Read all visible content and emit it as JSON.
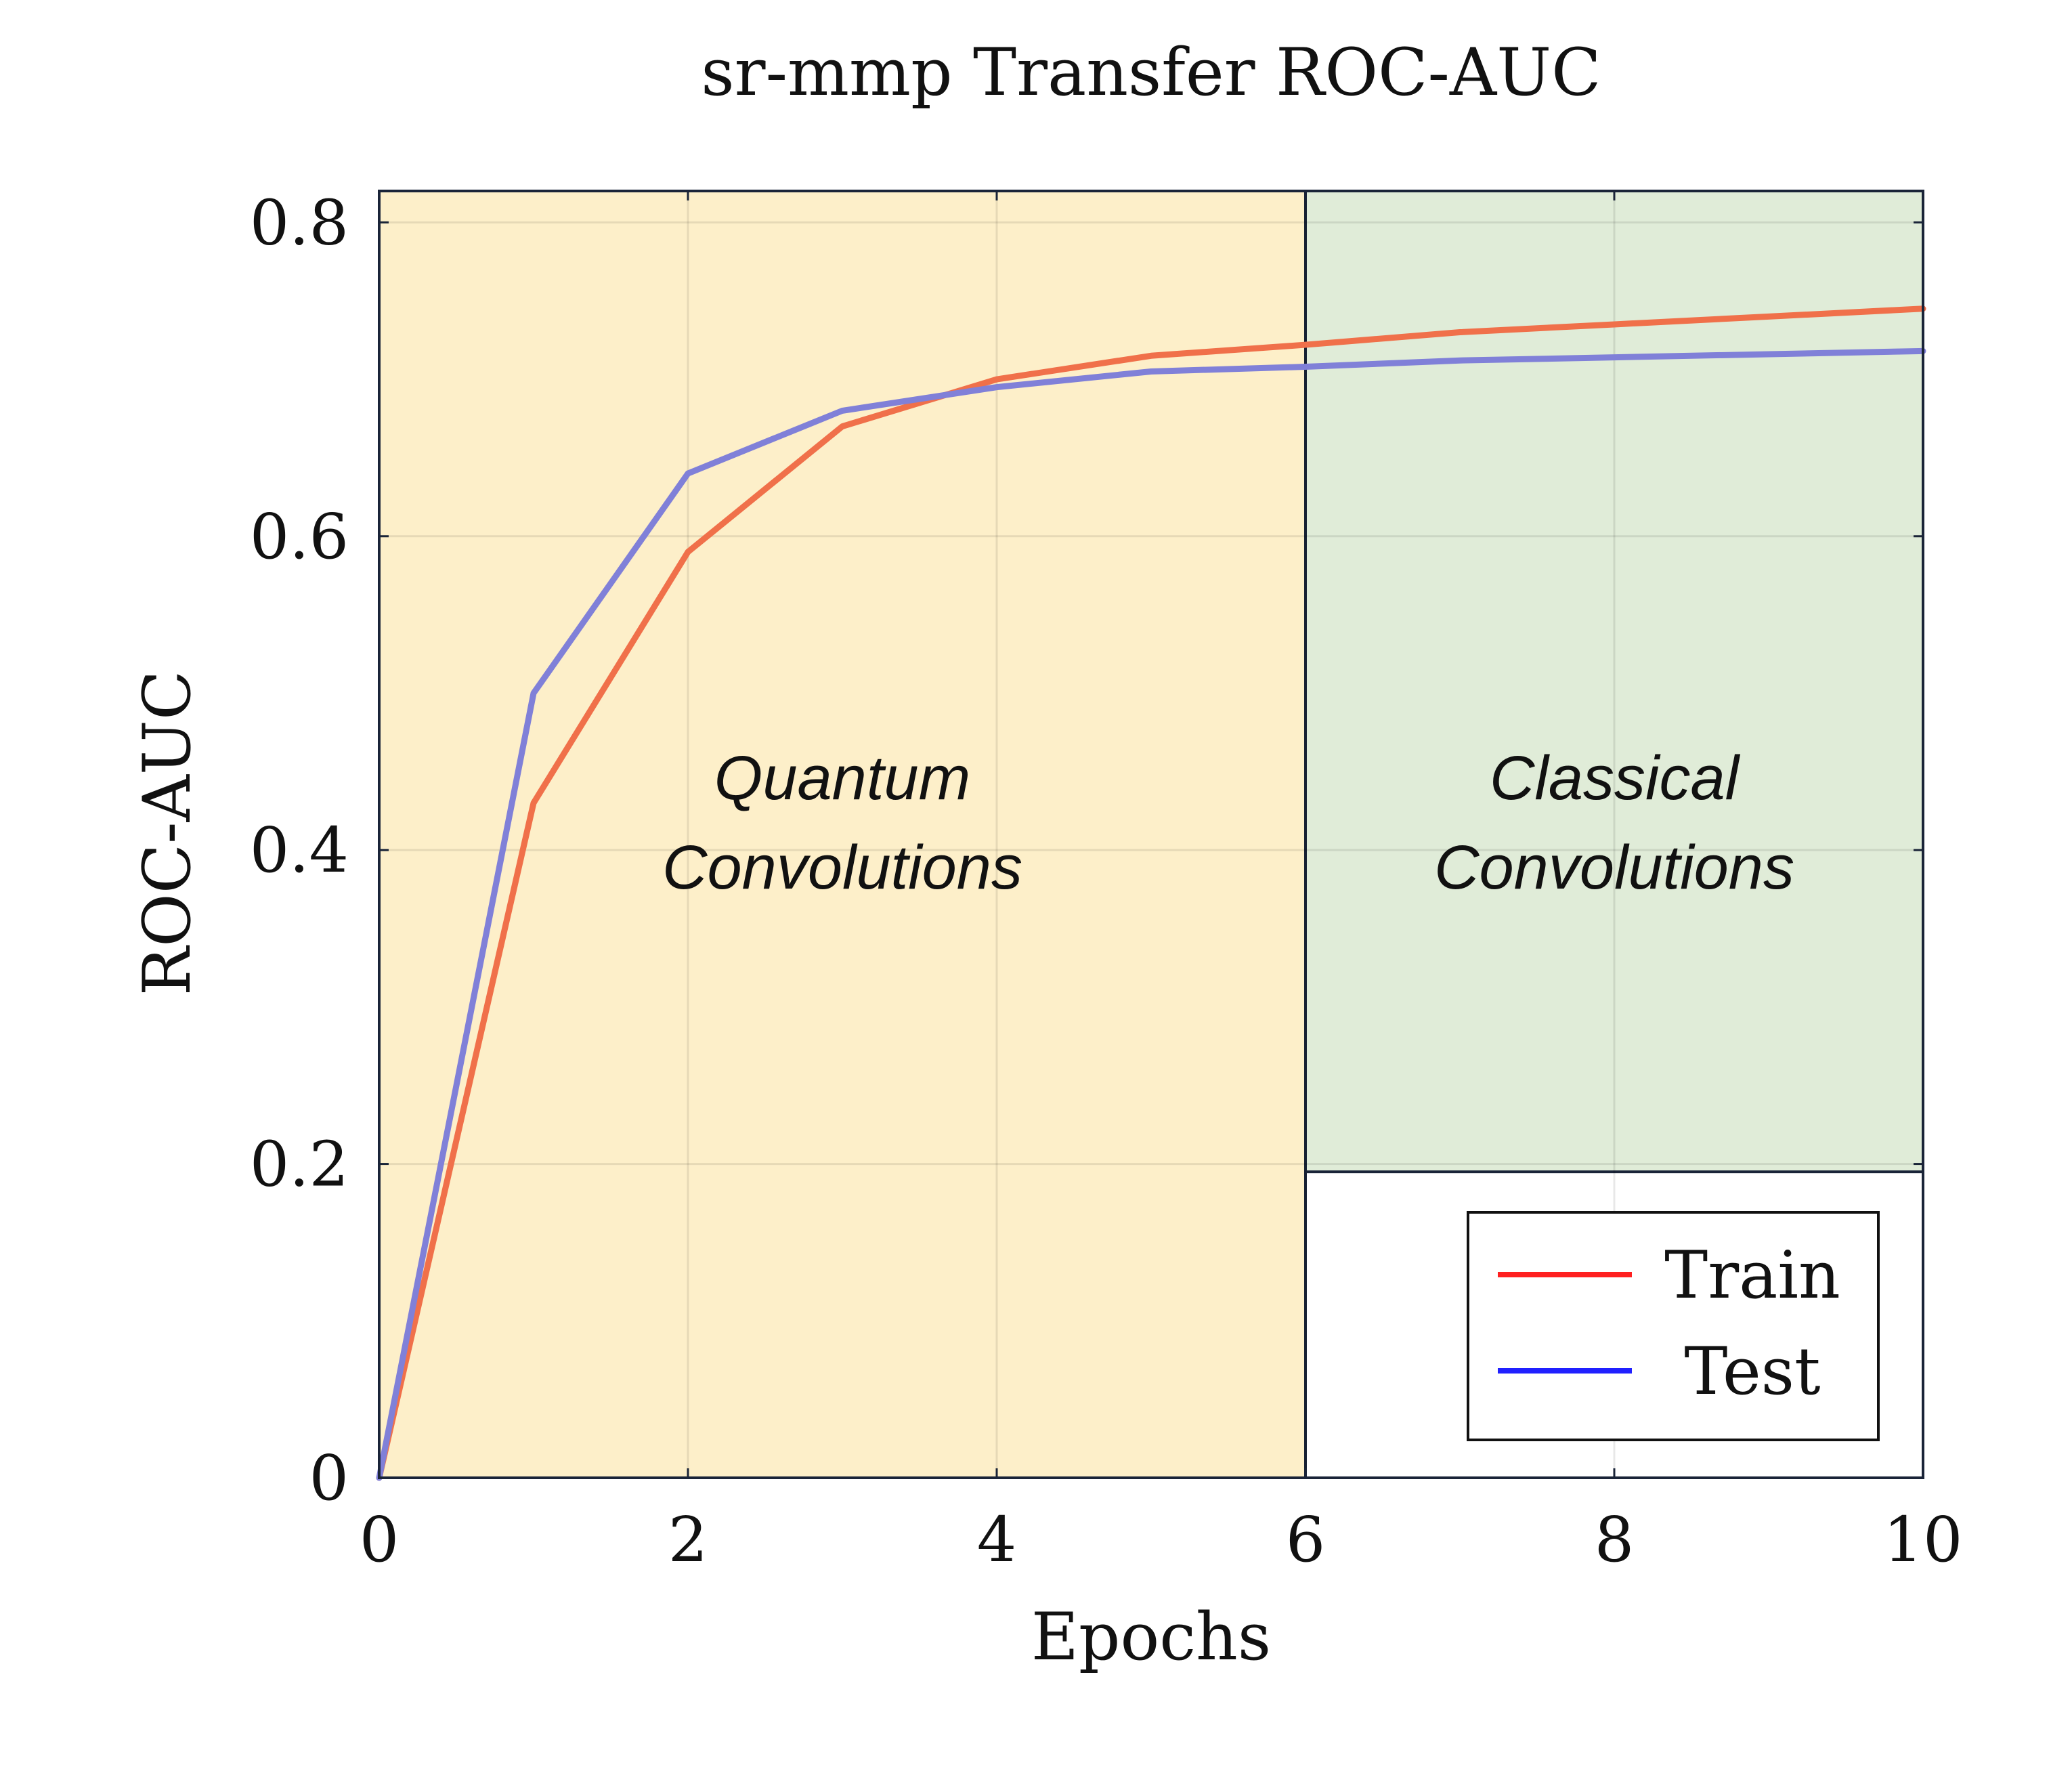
{
  "chart_data": {
    "type": "line",
    "title": "sr-mmp Transfer ROC-AUC",
    "xlabel": "Epochs",
    "ylabel": "ROC-AUC",
    "xlim": [
      0,
      10
    ],
    "ylim": [
      0,
      0.82
    ],
    "x_ticks": [
      0,
      2,
      4,
      6,
      8,
      10
    ],
    "x_tick_labels": [
      "0",
      "2",
      "4",
      "6",
      "8",
      "10"
    ],
    "y_ticks": [
      0,
      0.2,
      0.4,
      0.6,
      0.8
    ],
    "y_tick_labels": [
      "0",
      "0.2",
      "0.4",
      "0.6",
      "0.8"
    ],
    "grid": true,
    "legend_position": "bottom-right",
    "x": [
      0,
      1,
      2,
      3,
      4,
      5,
      6,
      7,
      8,
      9,
      10
    ],
    "series": [
      {
        "name": "Train",
        "color": "#f0704a",
        "legend_color": "#ff2020",
        "values": [
          0.0,
          0.43,
          0.59,
          0.67,
          0.7,
          0.715,
          0.722,
          0.73,
          0.735,
          0.74,
          0.745
        ]
      },
      {
        "name": "Test",
        "color": "#8080d8",
        "legend_color": "#2020ff",
        "values": [
          0.0,
          0.5,
          0.64,
          0.68,
          0.695,
          0.705,
          0.708,
          0.712,
          0.714,
          0.716,
          0.718
        ]
      }
    ],
    "regions": [
      {
        "label_lines": [
          "Quantum",
          "Convolutions"
        ],
        "x_start": 0,
        "x_end": 6,
        "y_start": 0,
        "y_end": 0.82,
        "color": "#fdefc9"
      },
      {
        "label_lines": [
          "Classical",
          "Convolutions"
        ],
        "x_start": 6,
        "x_end": 10,
        "y_start": 0.195,
        "y_end": 0.82,
        "color": "#e0ecd8"
      }
    ]
  }
}
